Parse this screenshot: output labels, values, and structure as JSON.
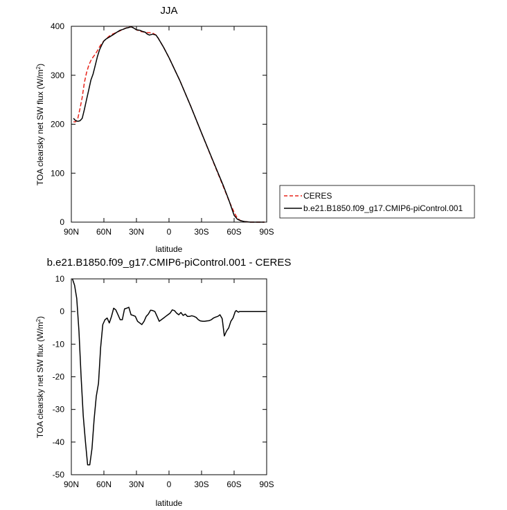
{
  "chart_data": [
    {
      "type": "line",
      "title": "JJA",
      "xlabel": "latitude",
      "ylabel": "TOA clearsky net SW flux (W/m²)",
      "ylim": [
        0,
        400
      ],
      "xlim": [
        90,
        -90
      ],
      "x_tick_values": [
        90,
        60,
        30,
        0,
        -30,
        -60,
        -90
      ],
      "x_tick_labels": [
        "90N",
        "60N",
        "30N",
        "0",
        "30S",
        "60S",
        "90S"
      ],
      "y_tick_values": [
        0,
        100,
        200,
        300,
        400
      ],
      "y_tick_labels": [
        "0",
        "100",
        "200",
        "300",
        "400"
      ],
      "legend": "right",
      "series": [
        {
          "name": "CERES",
          "color": "#e8231a",
          "dash": "dashed",
          "x": [
            88,
            86,
            84,
            82,
            80,
            78,
            76,
            74,
            72,
            70,
            68,
            66,
            64,
            62,
            60,
            58,
            55,
            52,
            50,
            48,
            45,
            42,
            40,
            38,
            35,
            33,
            30,
            27,
            25,
            22,
            20,
            18,
            15,
            12,
            10,
            5,
            0,
            -10,
            -20,
            -30,
            -40,
            -50,
            -55,
            -60,
            -63,
            -66,
            -70,
            -75,
            -80,
            -85,
            -88
          ],
          "y": [
            205,
            205,
            212,
            232,
            255,
            285,
            305,
            320,
            330,
            337,
            343,
            350,
            358,
            365,
            370,
            374,
            380,
            384,
            386,
            388,
            391,
            394,
            396,
            398,
            399,
            397,
            393,
            390,
            389,
            388,
            387,
            387,
            386,
            382,
            376,
            357,
            336,
            289,
            237,
            182,
            127,
            73,
            45,
            20,
            8,
            3,
            1,
            0,
            0,
            0,
            0
          ]
        },
        {
          "name": "b.e21.B1850.f09_g17.CMIP6-piControl.001",
          "color": "#000000",
          "dash": "solid",
          "x": [
            88,
            86,
            84,
            82,
            80,
            78,
            76,
            74,
            72,
            70,
            68,
            66,
            64,
            62,
            60,
            58,
            55,
            52,
            50,
            48,
            45,
            42,
            40,
            38,
            35,
            33,
            30,
            27,
            25,
            22,
            20,
            18,
            15,
            12,
            10,
            5,
            0,
            -10,
            -20,
            -30,
            -40,
            -50,
            -55,
            -60,
            -63,
            -66,
            -70,
            -75,
            -80,
            -85,
            -88
          ],
          "y": [
            212,
            207,
            206,
            207,
            212,
            230,
            250,
            270,
            290,
            302,
            320,
            338,
            352,
            362,
            370,
            374,
            378,
            382,
            385,
            388,
            392,
            394,
            396,
            397,
            399,
            397,
            393,
            392,
            390,
            388,
            384,
            382,
            384,
            382,
            376,
            357,
            336,
            289,
            237,
            182,
            128,
            75,
            46,
            14,
            6,
            3,
            1,
            0,
            0,
            0,
            0
          ]
        }
      ]
    },
    {
      "type": "line",
      "title": "b.e21.B1850.f09_g17.CMIP6-piControl.001 - CERES",
      "xlabel": "latitude",
      "ylabel": "TOA clearsky net SW flux (W/m²)",
      "ylim": [
        -50,
        10
      ],
      "xlim": [
        90,
        -90
      ],
      "x_tick_values": [
        90,
        60,
        30,
        0,
        -30,
        -60,
        -90
      ],
      "x_tick_labels": [
        "90N",
        "60N",
        "30N",
        "0",
        "30S",
        "60S",
        "90S"
      ],
      "y_tick_values": [
        10,
        0,
        -10,
        -20,
        -30,
        -40,
        -50
      ],
      "y_tick_labels": [
        "10",
        "0",
        "-10",
        "-20",
        "-30",
        "-40",
        "-50"
      ],
      "series": [
        {
          "color": "#000000",
          "dash": "solid",
          "x": [
            89,
            87,
            85,
            83,
            81,
            79,
            78,
            77,
            75,
            73,
            71,
            69,
            67,
            65,
            63,
            61,
            59,
            57,
            55,
            53,
            51,
            49,
            47,
            45,
            43,
            41,
            39,
            37,
            35,
            33,
            31,
            29,
            27,
            25,
            23,
            21,
            19,
            17,
            15,
            13,
            11,
            9,
            7,
            5,
            3,
            1,
            -1,
            -3,
            -5,
            -7,
            -9,
            -11,
            -13,
            -15,
            -17,
            -19,
            -21,
            -23,
            -25,
            -27,
            -29,
            -31,
            -33,
            -35,
            -37,
            -39,
            -41,
            -43,
            -45,
            -47,
            -49,
            -51,
            -53,
            -55,
            -57,
            -59,
            -61,
            -62,
            -63,
            -64,
            -65,
            -67,
            -69,
            -71,
            -73,
            -75,
            -77,
            -79,
            -81,
            -83,
            -85,
            -87,
            -89
          ],
          "y": [
            10,
            8,
            4,
            -6,
            -20,
            -32,
            -36,
            -40,
            -47,
            -47,
            -42,
            -33,
            -26,
            -22,
            -11,
            -4,
            -2.5,
            -2,
            -3.5,
            -1.5,
            1,
            0.5,
            -1,
            -2.5,
            -2.5,
            0.8,
            1,
            1.3,
            -1,
            -1.2,
            -1.5,
            -3,
            -3.5,
            -4,
            -3,
            -1.5,
            -0.8,
            0.4,
            0.3,
            0,
            -1.5,
            -3,
            -2.5,
            -2,
            -1.5,
            -1,
            -0.5,
            0.5,
            0.3,
            -0.5,
            -1,
            -0.3,
            -1.2,
            -0.8,
            -1.5,
            -1.5,
            -1.3,
            -1.5,
            -1.8,
            -2.5,
            -2.9,
            -3,
            -3,
            -2.9,
            -2.8,
            -2.5,
            -2,
            -1.7,
            -1.5,
            -1,
            -2.2,
            -7.5,
            -6,
            -5,
            -3,
            -2,
            0,
            0.3,
            0,
            -0.2,
            0,
            0,
            0,
            0,
            0,
            0,
            0,
            0,
            0,
            0,
            0,
            0,
            0
          ]
        }
      ]
    }
  ]
}
